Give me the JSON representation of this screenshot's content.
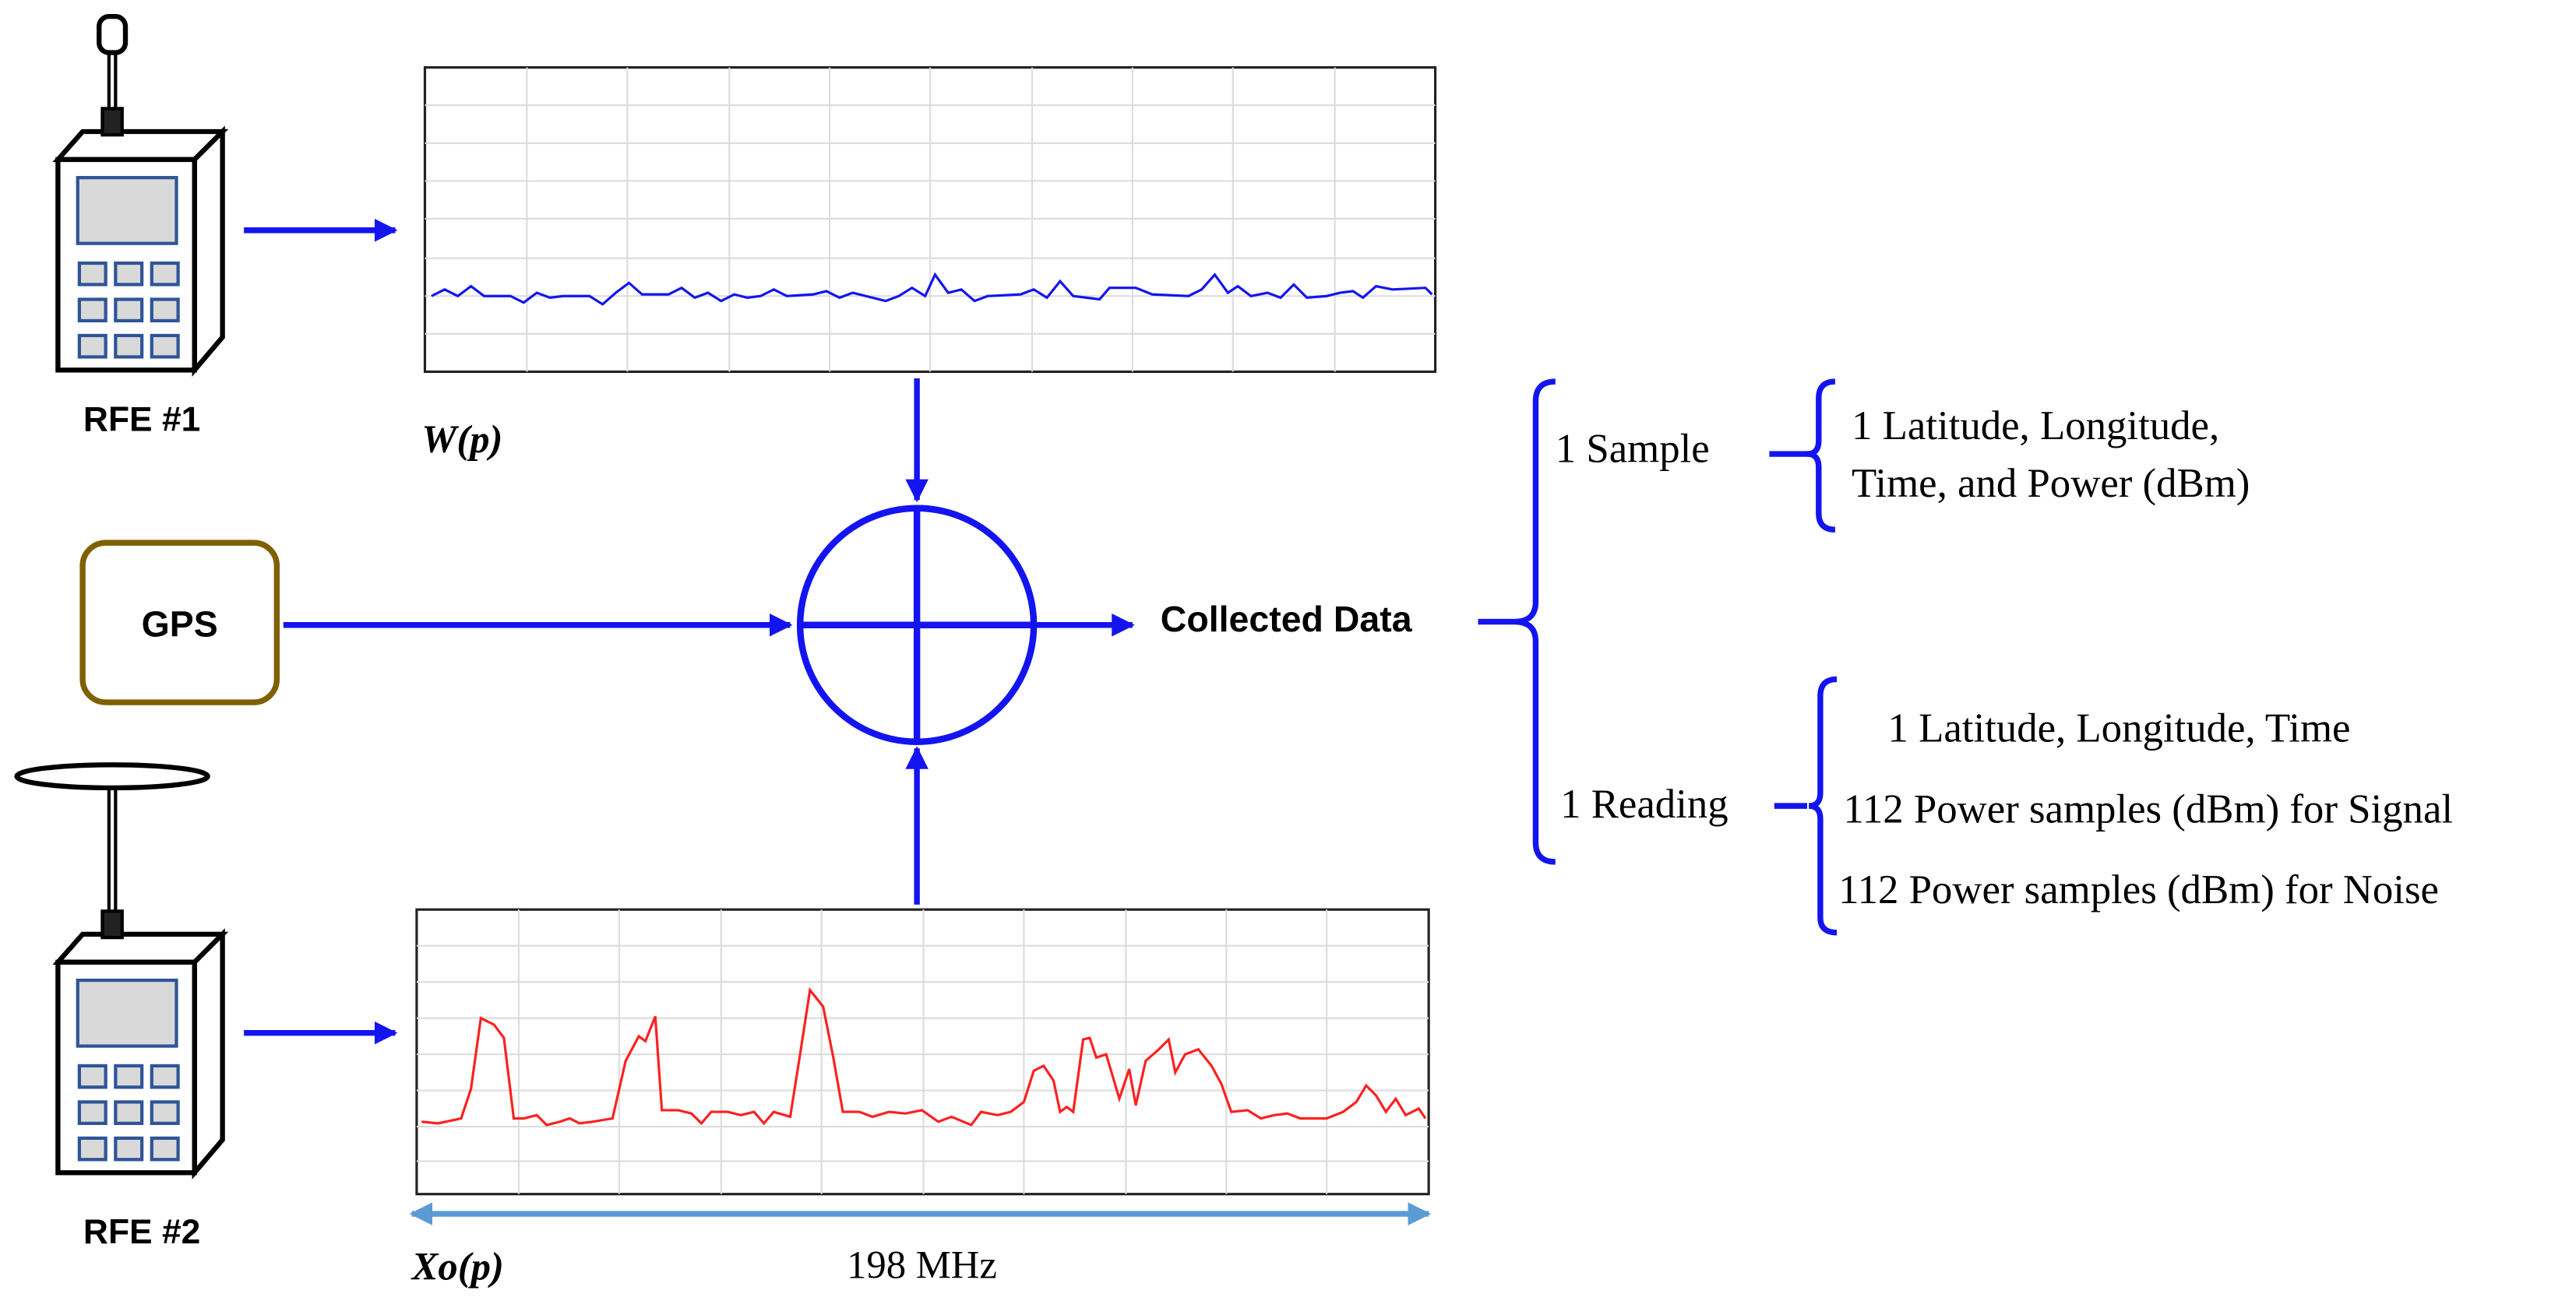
{
  "devices": [
    {
      "label": "RFE #1"
    },
    {
      "label": "RFE #2"
    }
  ],
  "gps": {
    "label": "GPS"
  },
  "plots": [
    {
      "label": "W(p)"
    },
    {
      "label": "Xo(p)",
      "bandwidth": "198 MHz"
    }
  ],
  "output": {
    "label": "Collected Data"
  },
  "sample": {
    "label": "1 Sample",
    "details": [
      "1 Latitude, Longitude,",
      "Time, and Power (dBm)"
    ]
  },
  "reading": {
    "label": "1 Reading",
    "details": [
      "1 Latitude, Longitude, Time",
      "112 Power samples (dBm) for Signal",
      "112 Power samples (dBm) for Noise"
    ]
  }
}
